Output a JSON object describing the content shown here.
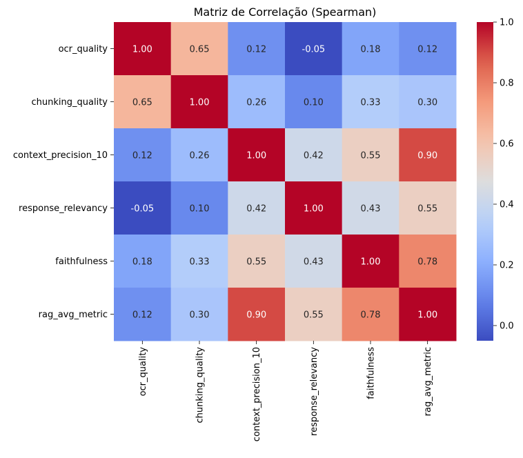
{
  "chart_data": {
    "type": "heatmap",
    "title": "Matriz de Correlação (Spearman)",
    "xlabel": "",
    "ylabel": "",
    "rows": [
      "ocr_quality",
      "chunking_quality",
      "context_precision_10",
      "response_relevancy",
      "faithfulness",
      "rag_avg_metric"
    ],
    "columns": [
      "ocr_quality",
      "chunking_quality",
      "context_precision_10",
      "response_relevancy",
      "faithfulness",
      "rag_avg_metric"
    ],
    "values": [
      [
        1.0,
        0.65,
        0.12,
        -0.05,
        0.18,
        0.12
      ],
      [
        0.65,
        1.0,
        0.26,
        0.1,
        0.33,
        0.3
      ],
      [
        0.12,
        0.26,
        1.0,
        0.42,
        0.55,
        0.9
      ],
      [
        -0.05,
        0.1,
        0.42,
        1.0,
        0.43,
        0.55
      ],
      [
        0.18,
        0.33,
        0.55,
        0.43,
        1.0,
        0.78
      ],
      [
        0.12,
        0.3,
        0.9,
        0.55,
        0.78,
        1.0
      ]
    ],
    "value_format": "2 decimals",
    "colormap": "coolwarm",
    "color_range": [
      -0.05,
      1.0
    ],
    "colorbar": {
      "ticks": [
        0.0,
        0.2,
        0.4,
        0.6,
        0.8,
        1.0
      ],
      "tick_labels": [
        "0.0",
        "0.2",
        "0.4",
        "0.6",
        "0.8",
        "1.0"
      ]
    }
  }
}
